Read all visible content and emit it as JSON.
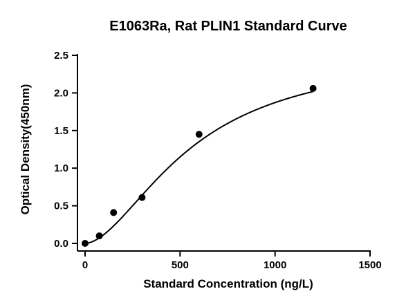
{
  "chart_data": {
    "type": "scatter",
    "title": "E1063Ra, Rat PLIN1 Standard Curve",
    "xlabel": "Standard Concentration (ng/L)",
    "ylabel": "Optical Density(450nm)",
    "xlim": [
      0,
      1500
    ],
    "ylim": [
      0,
      2.5
    ],
    "xticks": [
      0,
      500,
      1000,
      1500
    ],
    "xtick_labels": [
      "0",
      "500",
      "1000",
      "1500"
    ],
    "yticks": [
      0,
      0.5,
      1.0,
      1.5,
      2.0,
      2.5
    ],
    "ytick_labels": [
      "0.0",
      "0.5",
      "1.0",
      "1.5",
      "2.0",
      "2.5"
    ],
    "grid": false,
    "series": [
      {
        "x": [
          0,
          75,
          150,
          300,
          600,
          1200
        ],
        "y": [
          0.0,
          0.1,
          0.41,
          0.61,
          1.45,
          2.06
        ]
      }
    ],
    "fit": {
      "type": "four-parameter logistic",
      "A": 0.0,
      "D": 2.55,
      "C": 560,
      "B": 1.75
    },
    "colors": {
      "marker": "#000000",
      "line": "#000000",
      "axis": "#000000"
    }
  }
}
